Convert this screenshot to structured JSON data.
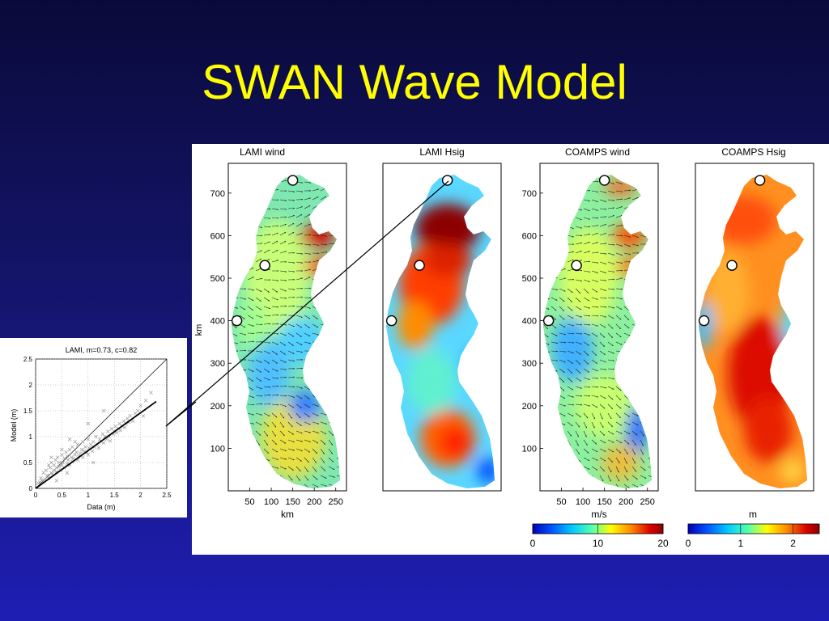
{
  "slide": {
    "title": "SWAN Wave Model"
  },
  "colors": {
    "title": "#ffff00",
    "background_top": "#0a0a3a",
    "background_bottom": "#1e1eb4",
    "colormap": [
      "#0000b4",
      "#0050ff",
      "#00c8ff",
      "#50ffb4",
      "#ffff00",
      "#ff8c00",
      "#dc0000",
      "#8c0000"
    ]
  },
  "chart_data": [
    {
      "type": "scatter",
      "title": "LAMI, m=0.73, c=0.82",
      "xlabel": "Data (m)",
      "ylabel": "Model (m)",
      "xlim": [
        0,
        2.5
      ],
      "ylim": [
        0,
        2.5
      ],
      "xticks": [
        "0",
        "0.5",
        "1",
        "1.5",
        "2",
        "2.5"
      ],
      "yticks": [
        "0",
        "0.5",
        "1",
        "1.5",
        "2",
        "2.5"
      ],
      "grid": true,
      "reference_line": {
        "slope": 1,
        "intercept": 0
      },
      "fit_line": {
        "slope": 0.73,
        "x_range": [
          0,
          2.3
        ]
      },
      "series": [
        {
          "marker": "x",
          "x": [
            0.05,
            0.08,
            0.1,
            0.12,
            0.15,
            0.18,
            0.2,
            0.22,
            0.25,
            0.28,
            0.3,
            0.3,
            0.32,
            0.35,
            0.35,
            0.38,
            0.4,
            0.4,
            0.42,
            0.45,
            0.45,
            0.48,
            0.5,
            0.5,
            0.52,
            0.55,
            0.55,
            0.58,
            0.6,
            0.6,
            0.62,
            0.65,
            0.65,
            0.68,
            0.7,
            0.7,
            0.72,
            0.75,
            0.78,
            0.8,
            0.8,
            0.82,
            0.85,
            0.88,
            0.9,
            0.9,
            0.92,
            0.95,
            0.98,
            1.0,
            1.0,
            1.02,
            1.05,
            1.08,
            1.1,
            1.12,
            1.15,
            1.18,
            1.2,
            1.22,
            1.25,
            1.28,
            1.3,
            1.32,
            1.35,
            1.38,
            1.4,
            1.42,
            1.45,
            1.48,
            1.5,
            1.52,
            1.55,
            1.58,
            1.6,
            1.62,
            1.65,
            1.68,
            1.7,
            1.72,
            1.75,
            1.78,
            1.8,
            1.85,
            1.9,
            1.95,
            2.0,
            2.05,
            2.1,
            2.2,
            1.1,
            0.3,
            0.6,
            0.5,
            0.75,
            0.4,
            0.25,
            0.65,
            1.0,
            1.3
          ],
          "y": [
            0.1,
            0.12,
            0.2,
            0.15,
            0.3,
            0.18,
            0.35,
            0.25,
            0.2,
            0.4,
            0.3,
            0.5,
            0.28,
            0.45,
            0.35,
            0.55,
            0.4,
            0.32,
            0.6,
            0.42,
            0.5,
            0.35,
            0.45,
            0.65,
            0.5,
            0.4,
            0.58,
            0.7,
            0.48,
            0.62,
            0.55,
            0.45,
            0.75,
            0.6,
            0.52,
            0.8,
            0.58,
            0.65,
            0.7,
            0.55,
            0.85,
            0.62,
            0.68,
            0.75,
            0.6,
            0.9,
            0.72,
            0.8,
            0.7,
            0.65,
            0.95,
            0.78,
            0.85,
            0.72,
            0.9,
            0.8,
            1.0,
            0.85,
            0.78,
            0.95,
            0.9,
            1.05,
            0.88,
            1.0,
            0.95,
            1.1,
            1.0,
            0.92,
            1.15,
            1.05,
            1.1,
            1.2,
            1.08,
            1.15,
            1.25,
            1.12,
            1.2,
            1.3,
            1.18,
            1.25,
            1.35,
            1.28,
            1.4,
            1.3,
            1.45,
            1.5,
            1.6,
            1.4,
            1.7,
            1.85,
            0.5,
            0.6,
            0.3,
            0.75,
            0.9,
            0.15,
            0.45,
            0.95,
            1.25,
            1.5
          ]
        }
      ]
    },
    {
      "type": "heatmap",
      "title": "LAMI wind",
      "xlabel": "km",
      "ylabel": "km",
      "xticks": [
        "50",
        "100",
        "150",
        "200",
        "250"
      ],
      "yticks": [
        "100",
        "200",
        "300",
        "400",
        "500",
        "600",
        "700"
      ],
      "xlim": [
        0,
        275
      ],
      "ylim": [
        0,
        770
      ],
      "vectors": true
    },
    {
      "type": "heatmap",
      "title": "LAMI Hsig",
      "vectors": false
    },
    {
      "type": "heatmap",
      "title": "COAMPS wind",
      "xlabel": "m/s",
      "xticks": [
        "50",
        "100",
        "150",
        "200",
        "250"
      ],
      "yticks": [
        "100",
        "200",
        "300",
        "400",
        "500",
        "600",
        "700"
      ],
      "xlim": [
        0,
        275
      ],
      "ylim": [
        0,
        770
      ],
      "vectors": true,
      "colorbar": {
        "ticks": [
          "0",
          "10",
          "20"
        ],
        "range": [
          0,
          20
        ]
      }
    },
    {
      "type": "heatmap",
      "title": "COAMPS Hsig",
      "xlabel": "m",
      "vectors": false,
      "colorbar": {
        "ticks": [
          "0",
          "1",
          "2"
        ],
        "range": [
          0,
          2.5
        ]
      }
    }
  ],
  "stations": [
    {
      "x_km": 150,
      "y_km": 730
    },
    {
      "x_km": 85,
      "y_km": 530
    },
    {
      "x_km": 20,
      "y_km": 400
    }
  ]
}
